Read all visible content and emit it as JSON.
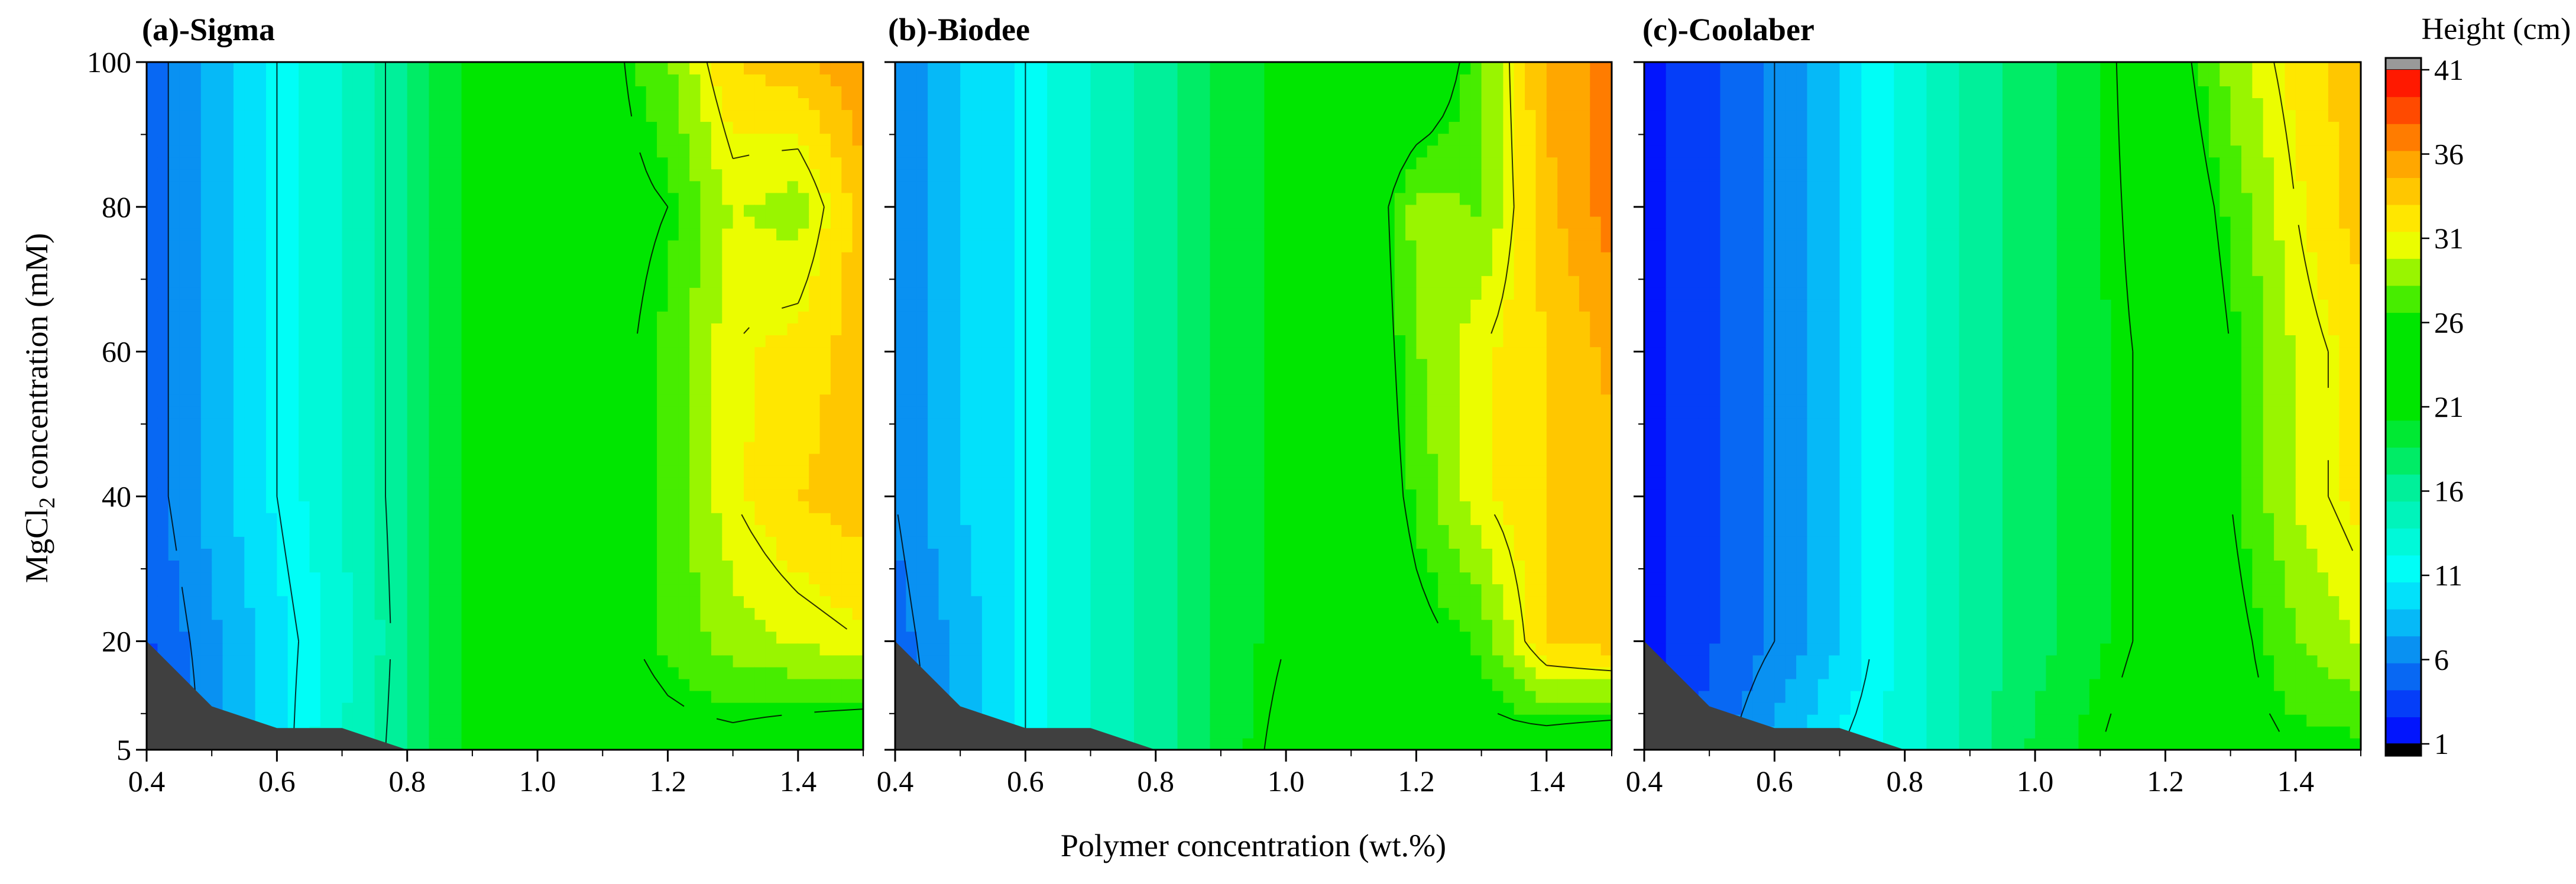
{
  "figure": {
    "x_axis_title": "Polymer concentration (wt.%)",
    "y_axis_title_main": "MgCl",
    "y_axis_title_sub": "2",
    "y_axis_title_rest": " concentration (mM)"
  },
  "chart_data": [
    {
      "type": "heatmap",
      "subtype": "filled-contour",
      "title": "(a)-Sigma",
      "x_ticks": [
        0.4,
        0.6,
        0.8,
        1.0,
        1.2,
        1.4
      ],
      "x_tick_labels": [
        "0.4",
        "0.6",
        "0.8",
        "1.0",
        "1.2",
        "1.4"
      ],
      "y_ticks": [
        5,
        20,
        40,
        60,
        80,
        100
      ],
      "y_tick_labels": [
        "5",
        "20",
        "40",
        "60",
        "80",
        "100"
      ],
      "xlim": [
        0.4,
        1.5
      ],
      "ylim": [
        5,
        100
      ],
      "x": [
        0.4,
        0.5,
        0.6,
        0.7,
        0.8,
        0.9,
        1.0,
        1.1,
        1.2,
        1.3,
        1.4,
        1.5
      ],
      "y": [
        5,
        20,
        40,
        60,
        80,
        100
      ],
      "z": [
        [
          2,
          7,
          10,
          14,
          17,
          21,
          23,
          24,
          25,
          25,
          24,
          23
        ],
        [
          4,
          7,
          10,
          13,
          17,
          21,
          23,
          25,
          27,
          29,
          30,
          31
        ],
        [
          5,
          8,
          11,
          14,
          17,
          21,
          23,
          25,
          27,
          31,
          33,
          34
        ],
        [
          5,
          8,
          11,
          14,
          17,
          21,
          23,
          25,
          27,
          31,
          32,
          34
        ],
        [
          5,
          8,
          11,
          14,
          17,
          21,
          23,
          25,
          26,
          30,
          29,
          34
        ],
        [
          5,
          8,
          11,
          14,
          17,
          21,
          23,
          25,
          28,
          33,
          34,
          36
        ]
      ],
      "no_data_region": [
        [
          0.4,
          5
        ],
        [
          0.4,
          20
        ],
        [
          0.5,
          11
        ],
        [
          0.6,
          8
        ],
        [
          0.7,
          8
        ],
        [
          0.8,
          5
        ]
      ]
    },
    {
      "type": "heatmap",
      "subtype": "filled-contour",
      "title": "(b)-Biodee",
      "x_ticks": [
        0.4,
        0.6,
        0.8,
        1.0,
        1.2,
        1.4
      ],
      "x_tick_labels": [
        "0.4",
        "0.6",
        "0.8",
        "1.0",
        "1.2",
        "1.4"
      ],
      "y_ticks": [
        5,
        20,
        40,
        60,
        80,
        100
      ],
      "y_tick_labels": [
        "5",
        "20",
        "40",
        "60",
        "80",
        "100"
      ],
      "xlim": [
        0.4,
        1.5
      ],
      "ylim": [
        5,
        100
      ],
      "x": [
        0.4,
        0.5,
        0.6,
        0.7,
        0.8,
        0.9,
        1.0,
        1.1,
        1.2,
        1.3,
        1.4,
        1.5
      ],
      "y": [
        5,
        20,
        40,
        60,
        80,
        100
      ],
      "z": [
        [
          4,
          8,
          11,
          14,
          16,
          19,
          22,
          24,
          25,
          25,
          24,
          23
        ],
        [
          5,
          8,
          11,
          14,
          16,
          19,
          21,
          22,
          25,
          27,
          33,
          34
        ],
        [
          6,
          9,
          11,
          14,
          16,
          19,
          21,
          22,
          27,
          31,
          33,
          34
        ],
        [
          6,
          9,
          11,
          14,
          16,
          19,
          21,
          22,
          28,
          31,
          33,
          35
        ],
        [
          6,
          9,
          11,
          14,
          16,
          19,
          21,
          22,
          29,
          28,
          34,
          37
        ],
        [
          6,
          9,
          11,
          14,
          16,
          19,
          21,
          22,
          22,
          28,
          35,
          37
        ]
      ],
      "no_data_region": [
        [
          0.4,
          5
        ],
        [
          0.4,
          20
        ],
        [
          0.5,
          11
        ],
        [
          0.6,
          8
        ],
        [
          0.7,
          8
        ],
        [
          0.8,
          5
        ]
      ]
    },
    {
      "type": "heatmap",
      "subtype": "filled-contour",
      "title": "(c)-Coolaber",
      "x_ticks": [
        0.4,
        0.6,
        0.8,
        1.0,
        1.2,
        1.4
      ],
      "x_tick_labels": [
        "0.4",
        "0.6",
        "0.8",
        "1.0",
        "1.2",
        "1.4"
      ],
      "y_ticks": [
        5,
        20,
        40,
        60,
        80,
        100
      ],
      "y_tick_labels": [
        "5",
        "20",
        "40",
        "60",
        "80",
        "100"
      ],
      "xlim": [
        0.4,
        1.5
      ],
      "ylim": [
        5,
        100
      ],
      "x": [
        0.4,
        0.5,
        0.6,
        0.7,
        0.8,
        0.9,
        1.0,
        1.1,
        1.2,
        1.3,
        1.4,
        1.5
      ],
      "y": [
        5,
        20,
        40,
        60,
        80,
        100
      ],
      "z": [
        [
          2,
          5,
          8,
          11,
          13,
          16,
          19,
          21,
          23,
          25,
          26,
          26
        ],
        [
          2,
          4,
          6,
          9,
          13,
          16,
          18,
          20,
          22,
          25,
          28,
          30
        ],
        [
          2,
          4,
          6,
          9,
          13,
          16,
          18,
          20,
          22,
          26,
          30,
          32
        ],
        [
          2,
          4,
          6,
          9,
          13,
          16,
          18,
          20,
          22,
          26,
          30,
          32
        ],
        [
          2,
          4,
          6,
          9,
          13,
          16,
          18,
          20,
          23,
          27,
          31,
          34
        ],
        [
          2,
          4,
          6,
          9,
          13,
          16,
          18,
          20,
          24,
          29,
          32,
          34
        ]
      ],
      "no_data_region": [
        [
          0.4,
          5
        ],
        [
          0.4,
          20
        ],
        [
          0.5,
          11
        ],
        [
          0.6,
          8
        ],
        [
          0.7,
          8
        ],
        [
          0.8,
          5
        ]
      ]
    }
  ],
  "colorbar": {
    "title": "Height (cm)",
    "min": 1,
    "max": 41,
    "ticks": [
      1,
      6,
      11,
      16,
      21,
      26,
      31,
      36,
      41
    ],
    "tick_labels": [
      "1",
      "6",
      "11",
      "16",
      "21",
      "26",
      "31",
      "36",
      "41"
    ],
    "contour_line_levels": [
      6,
      11,
      16,
      21,
      26,
      31
    ],
    "stops": [
      {
        "value": 1,
        "color": "#0000ff"
      },
      {
        "value": 6,
        "color": "#0a82f0"
      },
      {
        "value": 11,
        "color": "#00ffff"
      },
      {
        "value": 16,
        "color": "#00f0a0"
      },
      {
        "value": 21,
        "color": "#00e600"
      },
      {
        "value": 26,
        "color": "#00e600"
      },
      {
        "value": 31,
        "color": "#ffff00"
      },
      {
        "value": 36,
        "color": "#ff9b00"
      },
      {
        "value": 41,
        "color": "#ff0000"
      }
    ],
    "under_color": "#000000",
    "over_color": "#999999",
    "no_data_color": "#404040"
  }
}
